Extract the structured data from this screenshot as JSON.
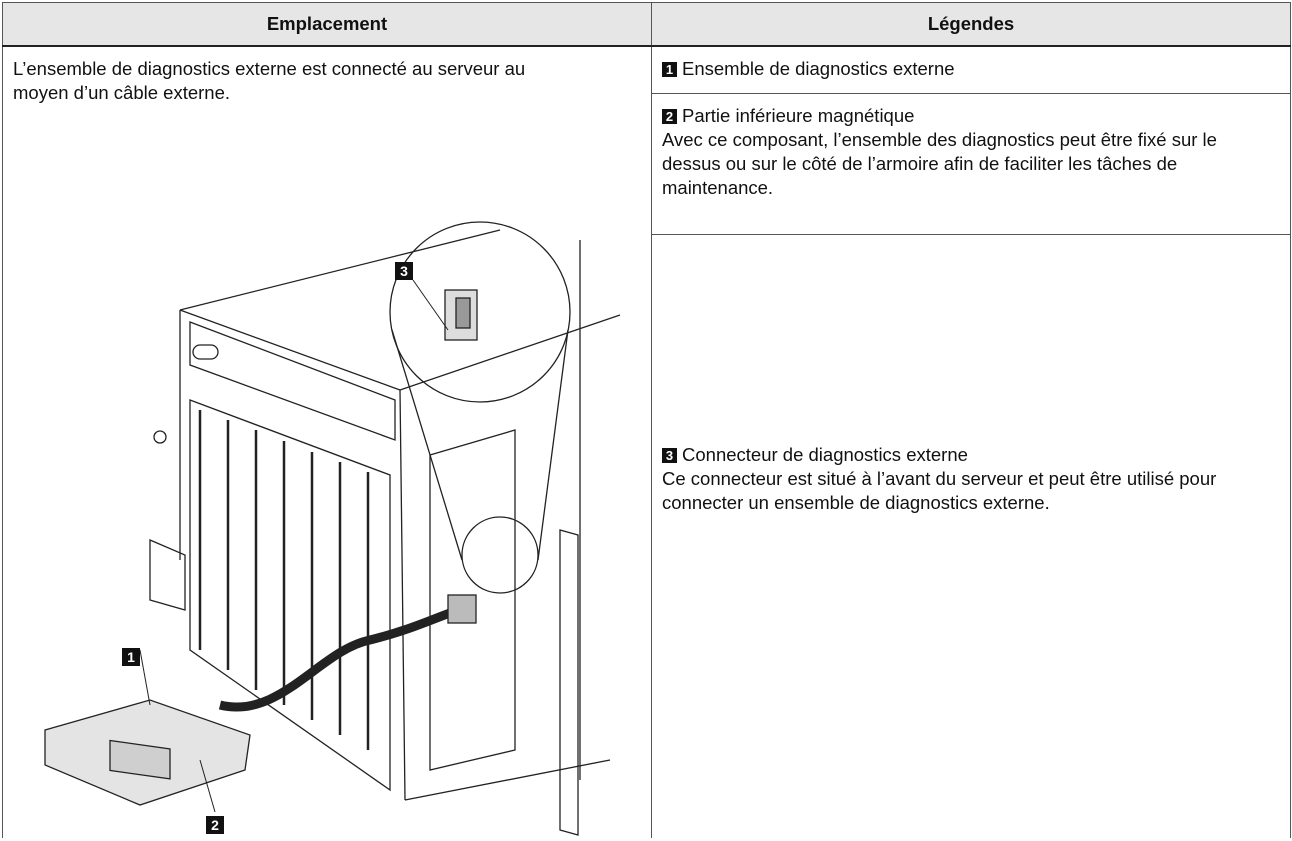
{
  "header": {
    "columns": [
      "Emplacement",
      "Légendes"
    ]
  },
  "location": {
    "text": "L’ensemble de diagnostics externe est connecté au serveur au moyen d’un câble externe.",
    "callouts": [
      "1",
      "2",
      "3"
    ]
  },
  "legends": [
    {
      "badge": "1",
      "title": "Ensemble de diagnostics externe"
    },
    {
      "badge": "2",
      "title": "Partie inférieure magnétique",
      "description": "Avec ce composant, l’ensemble des diagnostics peut être fixé sur le dessus ou sur le côté de l’armoire afin de faciliter les tâches de maintenance."
    },
    {
      "badge": "3",
      "title": "Connecteur de diagnostics externe",
      "description": "Ce connecteur est situé à l’avant du serveur et peut être utilisé pour connecter un ensemble de diagnostics externe."
    }
  ]
}
